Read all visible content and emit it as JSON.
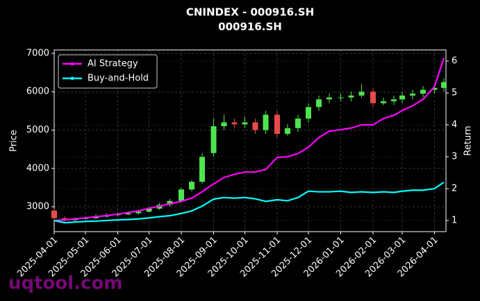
{
  "chart_data": {
    "type": "candlestick",
    "title": "CNINDEX - 000916.SH",
    "subtitle": "000916.SH",
    "ylabel": "Price",
    "y2label": "Return",
    "watermark": "uqtool.com",
    "x": [
      "2025-04-01",
      "2025-04-11",
      "2025-04-21",
      "2025-05-01",
      "2025-05-11",
      "2025-05-21",
      "2025-06-01",
      "2025-06-11",
      "2025-06-21",
      "2025-07-01",
      "2025-07-11",
      "2025-07-21",
      "2025-08-01",
      "2025-08-11",
      "2025-08-21",
      "2025-09-01",
      "2025-09-11",
      "2025-09-21",
      "2025-10-01",
      "2025-10-11",
      "2025-10-21",
      "2025-11-01",
      "2025-11-11",
      "2025-11-21",
      "2025-12-01",
      "2025-12-11",
      "2025-12-21",
      "2026-01-01",
      "2026-01-11",
      "2026-01-21",
      "2026-02-01",
      "2026-02-11",
      "2026-02-21",
      "2026-03-01",
      "2026-03-11",
      "2026-03-21",
      "2026-04-01",
      "2026-04-10"
    ],
    "open": [
      2900,
      2700,
      2650,
      2680,
      2700,
      2740,
      2780,
      2800,
      2830,
      2870,
      2950,
      3050,
      3150,
      3450,
      3650,
      4400,
      5100,
      5200,
      5150,
      5200,
      5000,
      5400,
      4900,
      5050,
      5300,
      5600,
      5800,
      5850,
      5850,
      5900,
      6000,
      5700,
      5750,
      5800,
      5900,
      5950,
      6050,
      6100
    ],
    "high": [
      2950,
      2750,
      2720,
      2750,
      2800,
      2830,
      2850,
      2880,
      2920,
      3000,
      3100,
      3200,
      3500,
      3700,
      4400,
      5300,
      5400,
      5300,
      5350,
      5300,
      5500,
      5500,
      5150,
      5400,
      5700,
      5900,
      5950,
      5950,
      6000,
      6200,
      6100,
      5850,
      5900,
      6000,
      6050,
      6150,
      6200,
      6350
    ],
    "low": [
      2650,
      2600,
      2600,
      2650,
      2680,
      2720,
      2750,
      2780,
      2800,
      2850,
      2920,
      3000,
      3100,
      3400,
      3600,
      4300,
      5000,
      5050,
      5050,
      4900,
      4900,
      4800,
      4850,
      4950,
      5200,
      5500,
      5700,
      5750,
      5750,
      5850,
      5600,
      5650,
      5650,
      5700,
      5800,
      5850,
      5950,
      6000
    ],
    "close": [
      2700,
      2650,
      2680,
      2700,
      2740,
      2780,
      2800,
      2830,
      2870,
      2950,
      3050,
      3150,
      3450,
      3650,
      4300,
      5100,
      5200,
      5150,
      5200,
      5000,
      5400,
      4900,
      5050,
      5300,
      5600,
      5800,
      5850,
      5850,
      5900,
      6000,
      5700,
      5750,
      5800,
      5900,
      5950,
      6050,
      6100,
      6250
    ],
    "up_color": "#4ee44e",
    "down_color": "#e84a4a",
    "series": [
      {
        "name": "AI Strategy",
        "color": "#ff00ff",
        "axis": "y2",
        "values": [
          1.0,
          1.02,
          1.05,
          1.08,
          1.12,
          1.15,
          1.2,
          1.25,
          1.3,
          1.38,
          1.45,
          1.52,
          1.6,
          1.7,
          1.9,
          2.15,
          2.35,
          2.45,
          2.52,
          2.52,
          2.6,
          2.98,
          3.0,
          3.1,
          3.3,
          3.6,
          3.8,
          3.85,
          3.9,
          4.0,
          4.0,
          4.2,
          4.3,
          4.45,
          4.6,
          4.8,
          5.2,
          6.1
        ]
      },
      {
        "name": "Buy-and-Hold",
        "color": "#00ffff",
        "axis": "y2",
        "values": [
          1.0,
          0.93,
          0.95,
          0.97,
          0.98,
          1.0,
          1.02,
          1.03,
          1.05,
          1.08,
          1.12,
          1.15,
          1.22,
          1.3,
          1.45,
          1.67,
          1.72,
          1.7,
          1.72,
          1.68,
          1.6,
          1.65,
          1.62,
          1.72,
          1.92,
          1.9,
          1.9,
          1.92,
          1.88,
          1.9,
          1.88,
          1.9,
          1.88,
          1.92,
          1.95,
          1.95,
          2.0,
          2.2
        ]
      }
    ],
    "xlim": [
      "2025-04-01",
      "2026-04-12"
    ],
    "xticks": [
      "2025-04-01",
      "2025-05-01",
      "2025-06-01",
      "2025-07-01",
      "2025-08-01",
      "2025-09-01",
      "2025-10-01",
      "2025-11-01",
      "2025-12-01",
      "2026-01-01",
      "2026-02-01",
      "2026-03-01",
      "2026-04-01"
    ],
    "ylim": [
      2350,
      7090
    ],
    "yticks": [
      3000,
      4000,
      5000,
      6000,
      7000
    ],
    "y2lim": [
      0.65,
      6.35
    ],
    "y2ticks": [
      1,
      2,
      3,
      4,
      5,
      6
    ],
    "grid": true,
    "legend": "upper left"
  }
}
